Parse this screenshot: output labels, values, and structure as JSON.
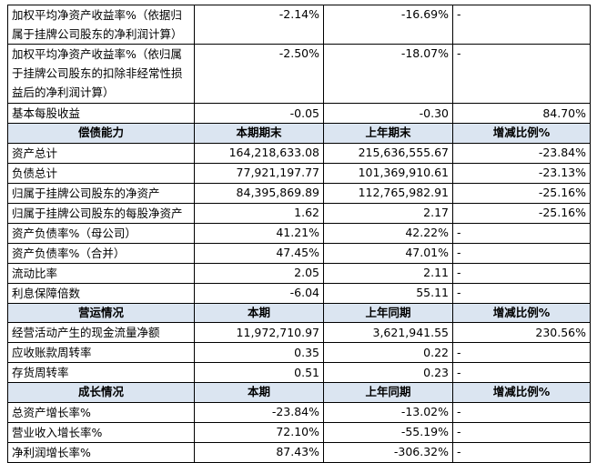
{
  "table": {
    "top_rows": [
      [
        "加权平均净资产收益率%（依据归属于挂牌公司股东的净利润计算）",
        "-2.14%",
        "-16.69%",
        "-"
      ],
      [
        "加权平均净资产收益率%（依归属于挂牌公司股东的扣除非经常性损益后的净利润计算）",
        "-2.50%",
        "-18.07%",
        "-"
      ],
      [
        "基本每股收益",
        "-0.05",
        "-0.30",
        "84.70%"
      ]
    ],
    "sections": [
      {
        "header": [
          "偿债能力",
          "本期期末",
          "上年期末",
          "增减比例%"
        ],
        "rows": [
          [
            "资产总计",
            "164,218,633.08",
            "215,636,555.67",
            "-23.84%"
          ],
          [
            "负债总计",
            "77,921,197.77",
            "101,369,910.61",
            "-23.13%"
          ],
          [
            "归属于挂牌公司股东的净资产",
            "84,395,869.89",
            "112,765,982.91",
            "-25.16%"
          ],
          [
            "归属于挂牌公司股东的每股净资产",
            "1.62",
            "2.17",
            "-25.16%"
          ],
          [
            "资产负债率%（母公司）",
            "41.21%",
            "42.22%",
            "-"
          ],
          [
            "资产负债率%（合并）",
            "47.45%",
            "47.01%",
            "-"
          ],
          [
            "流动比率",
            "2.05",
            "2.11",
            "-"
          ],
          [
            "利息保障倍数",
            "-6.04",
            "55.11",
            "-"
          ]
        ]
      },
      {
        "header": [
          "营运情况",
          "本期",
          "上年同期",
          "增减比例%"
        ],
        "rows": [
          [
            "经营活动产生的现金流量净额",
            "11,972,710.97",
            "3,621,941.55",
            "230.56%"
          ],
          [
            "应收账款周转率",
            "0.35",
            "0.22",
            "-"
          ],
          [
            "存货周转率",
            "0.51",
            "0.23",
            "-"
          ]
        ]
      },
      {
        "header": [
          "成长情况",
          "本期",
          "上年同期",
          "增减比例%"
        ],
        "rows": [
          [
            "总资产增长率%",
            "-23.84%",
            "-13.02%",
            "-"
          ],
          [
            "营业收入增长率%",
            "72.10%",
            "-55.19%",
            "-"
          ],
          [
            "净利润增长率%",
            "87.43%",
            "-306.32%",
            "-"
          ]
        ]
      }
    ]
  }
}
